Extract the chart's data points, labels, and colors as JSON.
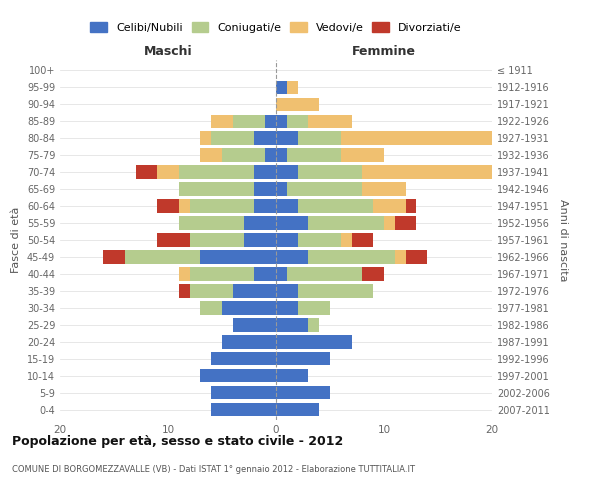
{
  "age_groups": [
    "0-4",
    "5-9",
    "10-14",
    "15-19",
    "20-24",
    "25-29",
    "30-34",
    "35-39",
    "40-44",
    "45-49",
    "50-54",
    "55-59",
    "60-64",
    "65-69",
    "70-74",
    "75-79",
    "80-84",
    "85-89",
    "90-94",
    "95-99",
    "100+"
  ],
  "birth_years": [
    "2007-2011",
    "2002-2006",
    "1997-2001",
    "1992-1996",
    "1987-1991",
    "1982-1986",
    "1977-1981",
    "1972-1976",
    "1967-1971",
    "1962-1966",
    "1957-1961",
    "1952-1956",
    "1947-1951",
    "1942-1946",
    "1937-1941",
    "1932-1936",
    "1927-1931",
    "1922-1926",
    "1917-1921",
    "1912-1916",
    "≤ 1911"
  ],
  "maschi": {
    "celibi": [
      6,
      6,
      7,
      6,
      5,
      4,
      5,
      4,
      2,
      7,
      3,
      3,
      2,
      2,
      2,
      1,
      2,
      1,
      0,
      0,
      0
    ],
    "coniugati": [
      0,
      0,
      0,
      0,
      0,
      0,
      2,
      4,
      6,
      7,
      5,
      6,
      6,
      7,
      7,
      4,
      4,
      3,
      0,
      0,
      0
    ],
    "vedovi": [
      0,
      0,
      0,
      0,
      0,
      0,
      0,
      0,
      1,
      0,
      0,
      0,
      1,
      0,
      2,
      2,
      1,
      2,
      0,
      0,
      0
    ],
    "divorziati": [
      0,
      0,
      0,
      0,
      0,
      0,
      0,
      1,
      0,
      2,
      3,
      0,
      2,
      0,
      2,
      0,
      0,
      0,
      0,
      0,
      0
    ]
  },
  "femmine": {
    "nubili": [
      4,
      5,
      3,
      5,
      7,
      3,
      2,
      2,
      1,
      3,
      2,
      3,
      2,
      1,
      2,
      1,
      2,
      1,
      0,
      1,
      0
    ],
    "coniugate": [
      0,
      0,
      0,
      0,
      0,
      1,
      3,
      7,
      7,
      8,
      4,
      7,
      7,
      7,
      6,
      5,
      4,
      2,
      0,
      0,
      0
    ],
    "vedove": [
      0,
      0,
      0,
      0,
      0,
      0,
      0,
      0,
      0,
      1,
      1,
      1,
      3,
      4,
      14,
      4,
      15,
      4,
      4,
      1,
      0
    ],
    "divorziate": [
      0,
      0,
      0,
      0,
      0,
      0,
      0,
      0,
      2,
      2,
      2,
      2,
      1,
      0,
      0,
      0,
      0,
      0,
      0,
      0,
      0
    ]
  },
  "colors": {
    "celibi_nubili": "#4472c4",
    "coniugati": "#b5cc8e",
    "vedovi": "#f0c070",
    "divorziati": "#c0392b"
  },
  "title": "Popolazione per età, sesso e stato civile - 2012",
  "subtitle": "COMUNE DI BORGOMEZZAVALLE (VB) - Dati ISTAT 1° gennaio 2012 - Elaborazione TUTTITALIA.IT",
  "xlabel_left": "Maschi",
  "xlabel_right": "Femmine",
  "ylabel_left": "Fasce di età",
  "ylabel_right": "Anni di nascita",
  "xlim": 20,
  "legend_labels": [
    "Celibi/Nubili",
    "Coniugati/e",
    "Vedovi/e",
    "Divorziati/e"
  ],
  "bg_color": "#ffffff",
  "grid_color": "#cccccc"
}
